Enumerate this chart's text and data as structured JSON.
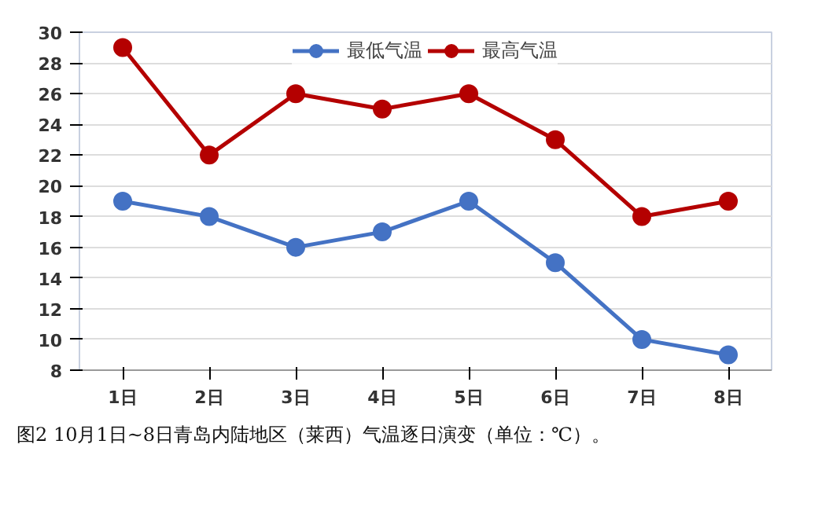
{
  "chart_data": {
    "type": "line",
    "categories": [
      "1日",
      "2日",
      "3日",
      "4日",
      "5日",
      "6日",
      "7日",
      "8日"
    ],
    "series": [
      {
        "name": "最低气温",
        "color": "#4472c4",
        "values": [
          19,
          18,
          16,
          17,
          19,
          15,
          10,
          9
        ]
      },
      {
        "name": "最高气温",
        "color": "#b40000",
        "values": [
          29,
          22,
          26,
          25,
          26,
          23,
          18,
          19
        ]
      }
    ],
    "ylim": [
      8,
      30
    ],
    "yticks": [
      8,
      10,
      12,
      14,
      16,
      18,
      20,
      22,
      24,
      26,
      28,
      30
    ],
    "grid": "y",
    "legend": "top",
    "marker": "circle",
    "line_style": "solid",
    "annotations": [
      "图2 10月1日~8日青岛内陆地区（莱西）气温逐日演变（单位：℃）。"
    ]
  }
}
